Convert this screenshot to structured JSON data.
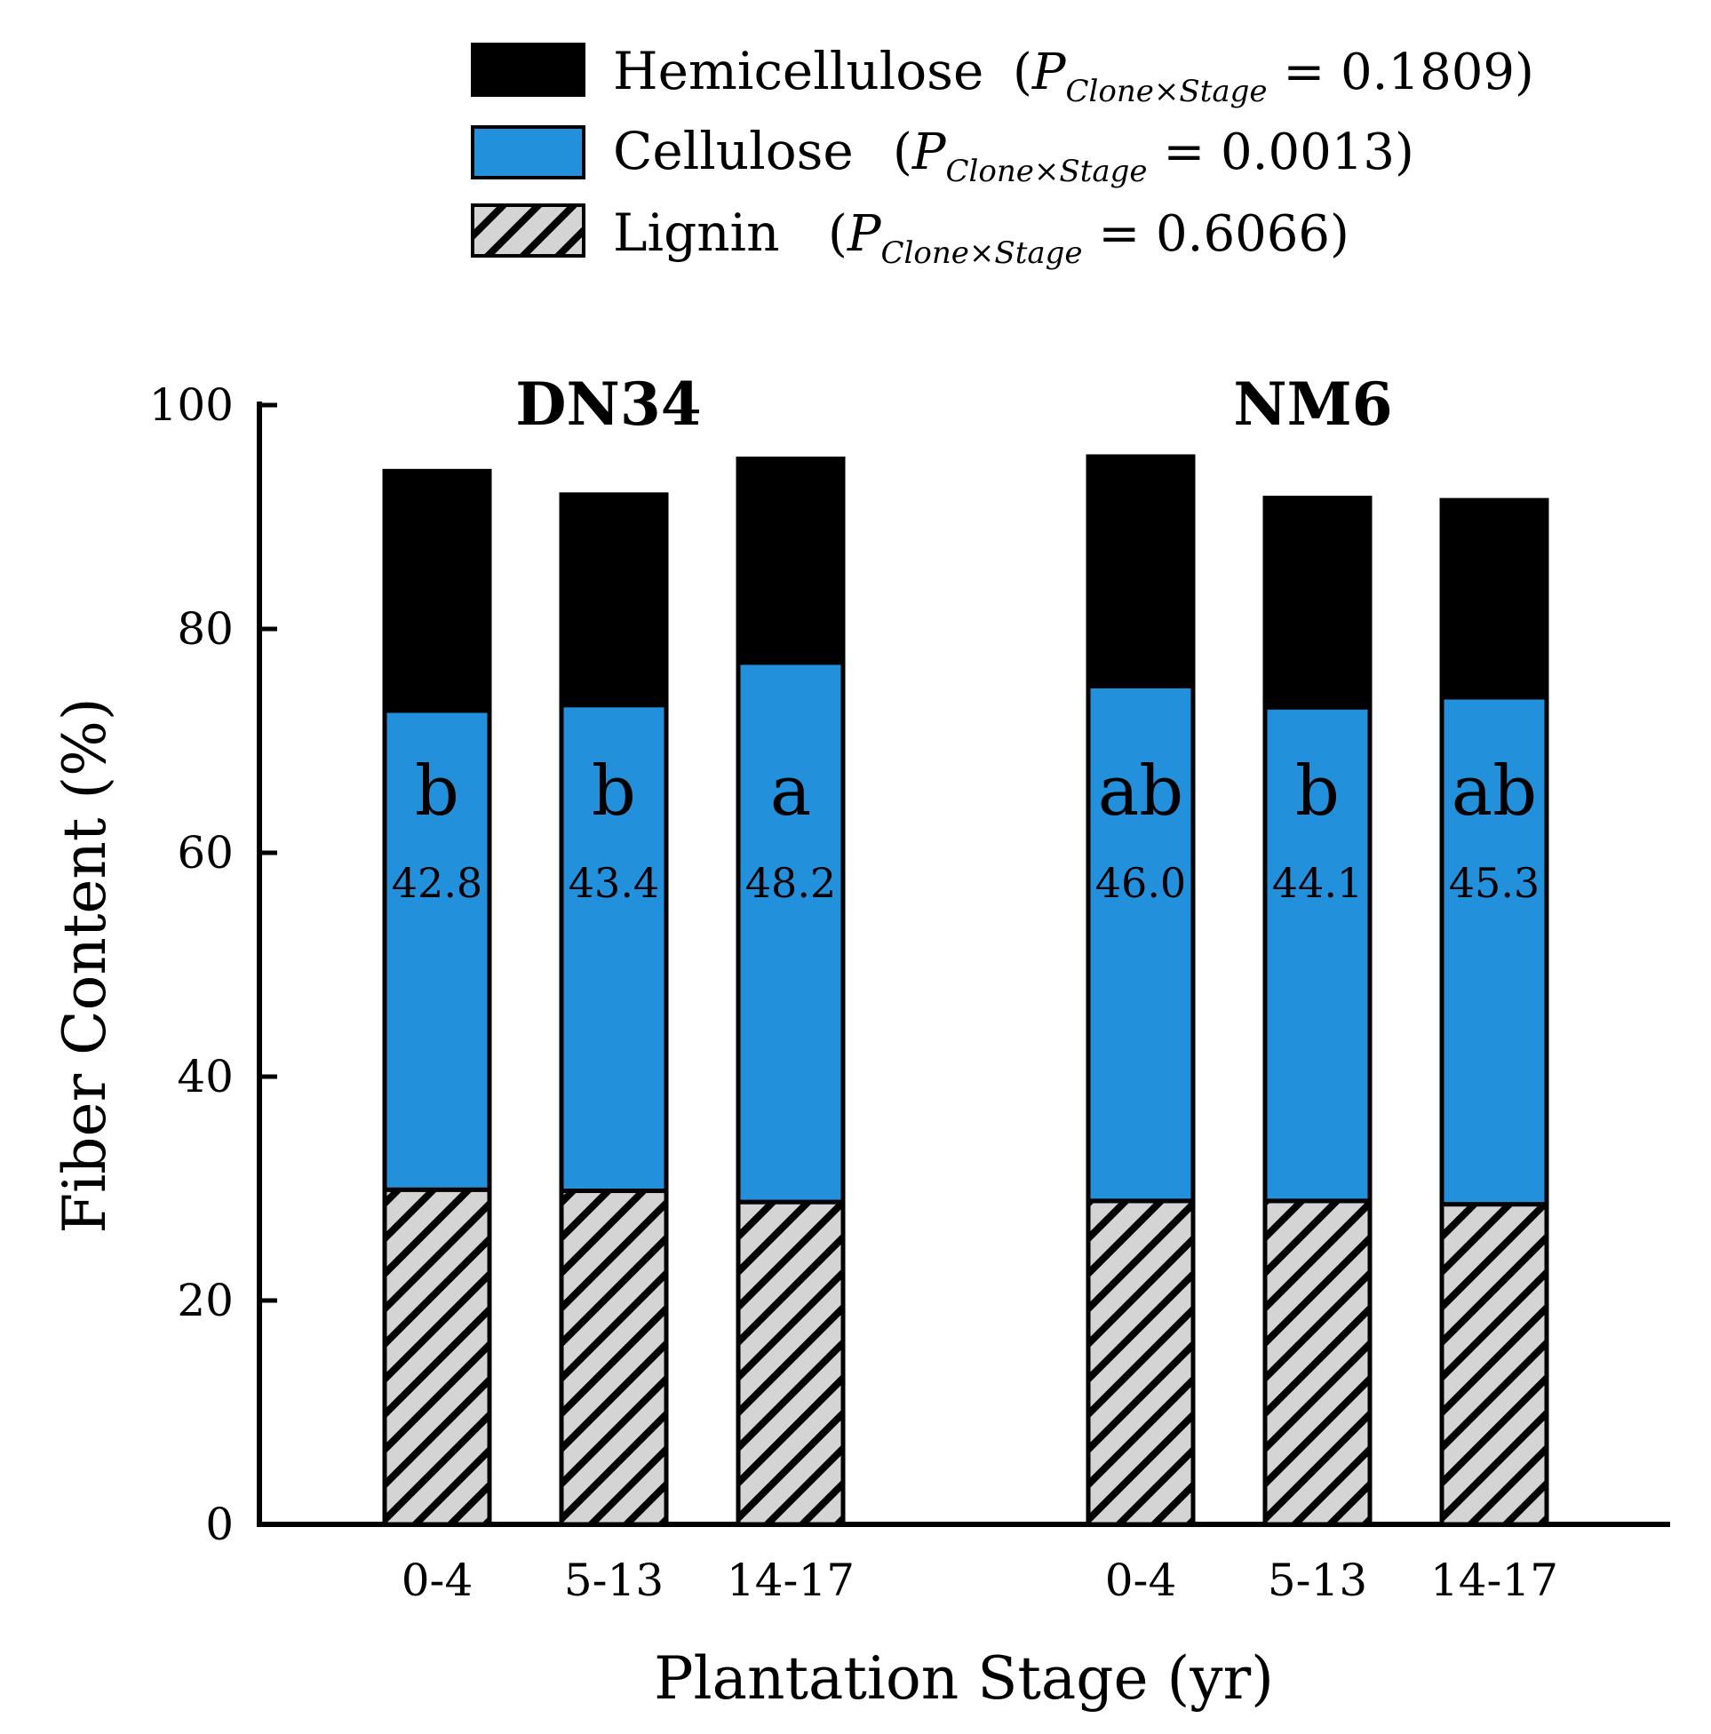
{
  "chart_data": {
    "type": "stacked-bar",
    "xlabel": "Plantation Stage (yr)",
    "ylabel": "Fiber Content (%)",
    "ylim": [
      0,
      100
    ],
    "yticks": [
      "0",
      "20",
      "40",
      "60",
      "80",
      "100"
    ],
    "colors": {
      "Hemicellulose": "#000000",
      "Cellulose": "#2390dc",
      "Lignin": "#d4d4d4"
    },
    "legend": [
      {
        "name": "Hemicellulose",
        "stat_prefix": "(",
        "stat_p": "P",
        "stat_sub": "Clone×Stage",
        "stat_value": " = 0.1809)"
      },
      {
        "name": "Cellulose",
        "stat_prefix": "(",
        "stat_p": "P",
        "stat_sub": "Clone×Stage",
        "stat_value": " = 0.0013)"
      },
      {
        "name": "Lignin",
        "stat_prefix": "(",
        "stat_p": "P",
        "stat_sub": "Clone×Stage",
        "stat_value": " = 0.6066)"
      }
    ],
    "groups": [
      {
        "title": "DN34",
        "bars": [
          {
            "category": "0-4",
            "lignin": 29.9,
            "cellulose": 42.8,
            "hemicellulose": 21.4,
            "letter": "b",
            "cellulose_label": "42.8"
          },
          {
            "category": "5-13",
            "lignin": 29.8,
            "cellulose": 43.4,
            "hemicellulose": 18.8,
            "letter": "b",
            "cellulose_label": "43.4"
          },
          {
            "category": "14-17",
            "lignin": 28.8,
            "cellulose": 48.2,
            "hemicellulose": 18.2,
            "letter": "a",
            "cellulose_label": "48.2"
          }
        ]
      },
      {
        "title": "NM6",
        "bars": [
          {
            "category": "0-4",
            "lignin": 28.9,
            "cellulose": 46.0,
            "hemicellulose": 20.5,
            "letter": "ab",
            "cellulose_label": "46.0"
          },
          {
            "category": "5-13",
            "lignin": 28.9,
            "cellulose": 44.1,
            "hemicellulose": 18.7,
            "letter": "b",
            "cellulose_label": "44.1"
          },
          {
            "category": "14-17",
            "lignin": 28.6,
            "cellulose": 45.3,
            "hemicellulose": 17.6,
            "letter": "ab",
            "cellulose_label": "45.3"
          }
        ]
      }
    ]
  }
}
